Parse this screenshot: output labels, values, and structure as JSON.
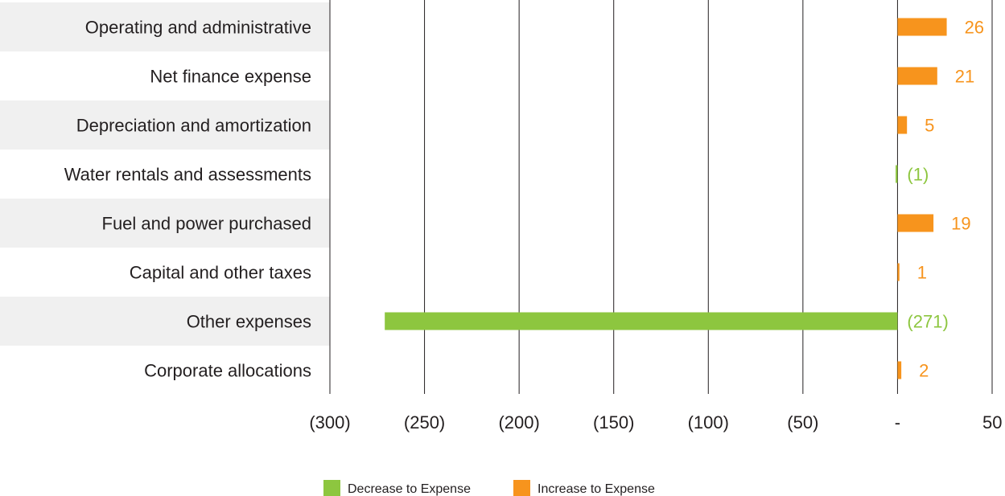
{
  "chart_data": {
    "type": "bar",
    "orientation": "horizontal",
    "categories": [
      "Operating and administrative",
      "Net finance expense",
      "Depreciation and amortization",
      "Water rentals and assessments",
      "Fuel and power purchased",
      "Capital and other taxes",
      "Other expenses",
      "Corporate allocations"
    ],
    "values": [
      26,
      21,
      5,
      -1,
      19,
      1,
      -271,
      2
    ],
    "value_labels": [
      "26",
      "21",
      "5",
      "(1)",
      "19",
      "1",
      "(271)",
      "2"
    ],
    "xlim": [
      -300,
      50
    ],
    "x_ticks": [
      -300,
      -250,
      -200,
      -150,
      -100,
      -50,
      0,
      50
    ],
    "x_tick_labels": [
      "(300)",
      "(250)",
      "(200)",
      "(150)",
      "(100)",
      "(50)",
      "-",
      "50"
    ],
    "grid": "vertical",
    "legend_placement": "bottom",
    "series": [
      {
        "name": "Decrease to Expense",
        "color": "#8dc63f"
      },
      {
        "name": "Increase to Expense",
        "color": "#f7941d"
      }
    ],
    "colors": {
      "decrease": "#8dc63f",
      "increase": "#f7941d",
      "band": "#f0f0f0",
      "grid": "#231f20"
    }
  }
}
